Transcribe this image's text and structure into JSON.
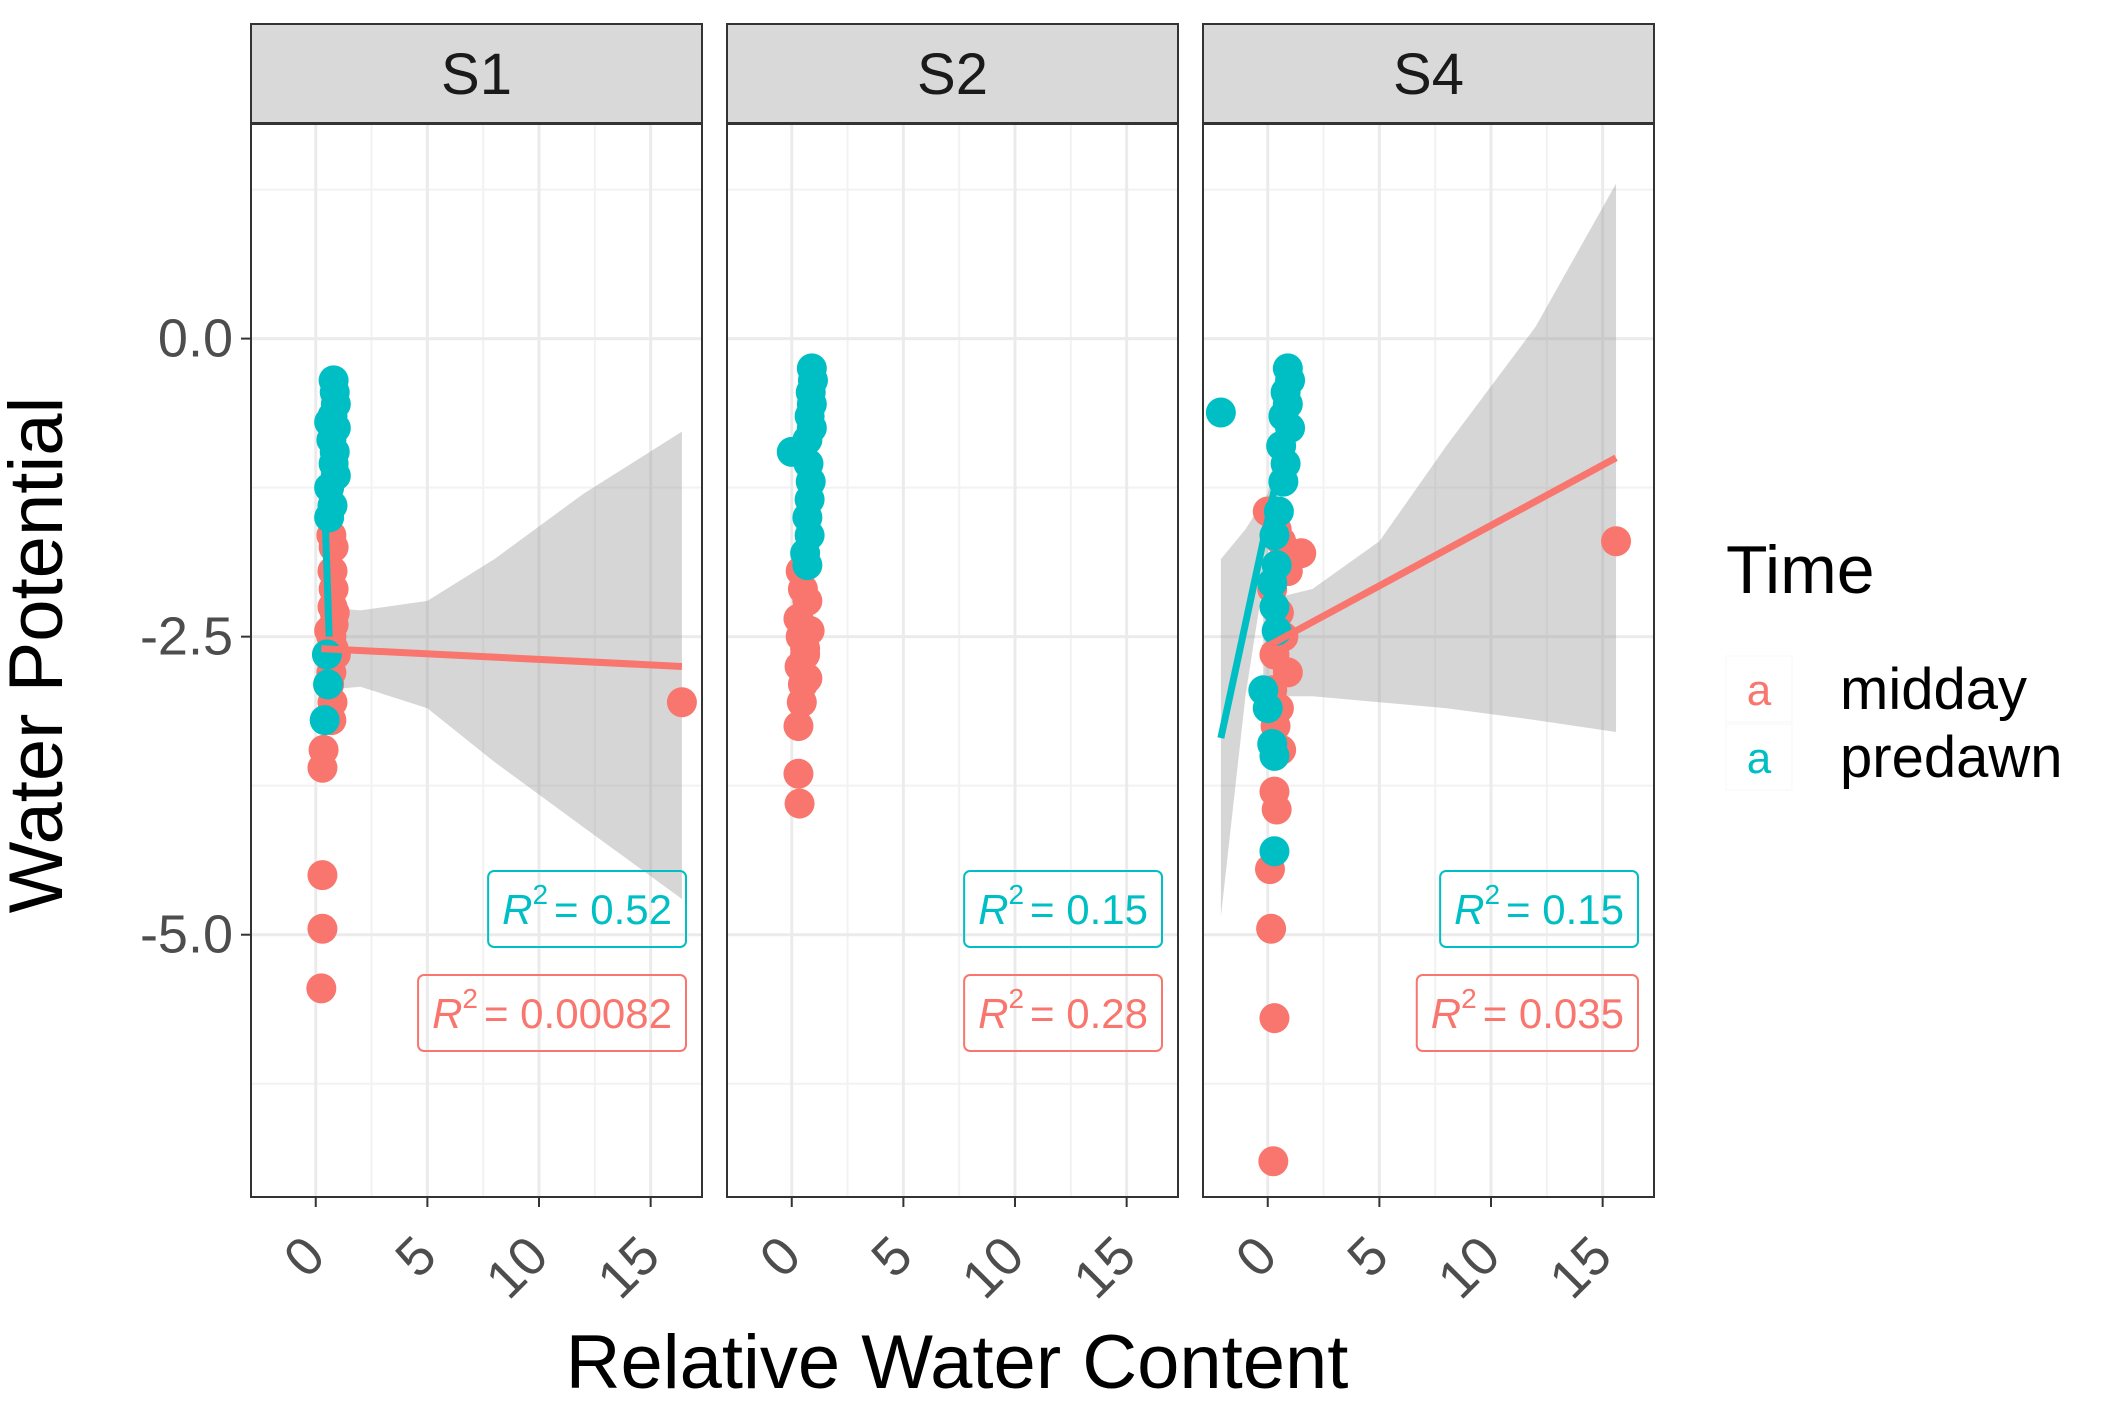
{
  "chart_data": {
    "type": "scatter",
    "xlabel": "Relative Water Content",
    "ylabel": "Water Potential",
    "legend": {
      "title": "Time",
      "position": "right",
      "entries": [
        {
          "name": "midday",
          "key": "a",
          "color": "#F8766D"
        },
        {
          "name": "predawn",
          "key": "a",
          "color": "#00BFC4"
        }
      ]
    },
    "xlim": [
      -2.9,
      17.3
    ],
    "ylim": [
      -7.2,
      1.8
    ],
    "x_ticks": [
      0,
      5,
      10,
      15
    ],
    "x_tick_labels": [
      "0",
      "5",
      "10",
      "15"
    ],
    "y_ticks": [
      0.0,
      -2.5,
      -5.0
    ],
    "y_tick_labels": [
      "0.0",
      "-2.5",
      "-5.0"
    ],
    "grid": true,
    "panels": [
      {
        "name": "S1",
        "series": [
          {
            "name": "midday",
            "color": "#F8766D",
            "points": [
              [
                0.3,
                -3.6
              ],
              [
                0.35,
                -3.45
              ],
              [
                0.3,
                -4.5
              ],
              [
                0.3,
                -4.95
              ],
              [
                0.25,
                -5.45
              ],
              [
                0.7,
                -1.65
              ],
              [
                0.8,
                -1.75
              ],
              [
                0.75,
                -1.95
              ],
              [
                0.8,
                -2.1
              ],
              [
                0.75,
                -2.25
              ],
              [
                0.8,
                -2.4
              ],
              [
                0.7,
                -2.5
              ],
              [
                0.8,
                -2.6
              ],
              [
                0.9,
                -2.65
              ],
              [
                0.7,
                -2.8
              ],
              [
                0.6,
                -2.9
              ],
              [
                0.75,
                -3.05
              ],
              [
                0.7,
                -3.2
              ],
              [
                0.6,
                -2.45
              ],
              [
                0.85,
                -2.3
              ],
              [
                16.4,
                -3.05
              ]
            ],
            "fit": [
              [
                0.25,
                -2.6
              ],
              [
                16.4,
                -2.75
              ]
            ],
            "band_upper": [
              [
                0.25,
                -2.25
              ],
              [
                2,
                -2.28
              ],
              [
                5,
                -2.2
              ],
              [
                8,
                -1.85
              ],
              [
                12,
                -1.3
              ],
              [
                16.4,
                -0.78
              ]
            ],
            "band_lower": [
              [
                0.25,
                -2.95
              ],
              [
                2,
                -2.92
              ],
              [
                5,
                -3.1
              ],
              [
                8,
                -3.55
              ],
              [
                12,
                -4.1
              ],
              [
                16.4,
                -4.7
              ]
            ],
            "r2_label": {
              "coef": "R",
              "exp": "2",
              "value": "= 0.00082"
            }
          },
          {
            "name": "predawn",
            "color": "#00BFC4",
            "points": [
              [
                0.8,
                -0.35
              ],
              [
                0.85,
                -0.45
              ],
              [
                0.9,
                -0.55
              ],
              [
                0.75,
                -0.65
              ],
              [
                0.9,
                -0.75
              ],
              [
                0.7,
                -0.85
              ],
              [
                0.85,
                -0.95
              ],
              [
                0.8,
                -1.05
              ],
              [
                0.9,
                -1.15
              ],
              [
                0.6,
                -1.25
              ],
              [
                0.75,
                -1.4
              ],
              [
                0.6,
                -1.5
              ],
              [
                0.5,
                -2.65
              ],
              [
                0.55,
                -2.9
              ],
              [
                0.4,
                -3.2
              ],
              [
                0.6,
                -0.7
              ]
            ],
            "fit": [
              [
                0.4,
                -1.4
              ],
              [
                0.6,
                -2.5
              ]
            ],
            "r2_label": {
              "coef": "R",
              "exp": "2",
              "value": "= 0.52"
            }
          }
        ]
      },
      {
        "name": "S2",
        "series": [
          {
            "name": "midday",
            "color": "#F8766D",
            "points": [
              [
                0.4,
                -1.95
              ],
              [
                0.5,
                -2.1
              ],
              [
                0.3,
                -2.35
              ],
              [
                0.4,
                -2.5
              ],
              [
                0.6,
                -2.6
              ],
              [
                0.35,
                -2.75
              ],
              [
                0.5,
                -2.9
              ],
              [
                0.45,
                -3.05
              ],
              [
                0.3,
                -3.25
              ],
              [
                0.3,
                -3.65
              ],
              [
                0.35,
                -3.9
              ],
              [
                0.7,
                -2.2
              ],
              [
                0.8,
                -2.45
              ],
              [
                0.6,
                -2.65
              ],
              [
                0.7,
                -2.85
              ]
            ],
            "fit": [
              [
                0.3,
                -3.0
              ],
              [
                0.8,
                -2.2
              ]
            ],
            "r2_label": {
              "coef": "R",
              "exp": "2",
              "value": "= 0.28"
            }
          },
          {
            "name": "predawn",
            "color": "#00BFC4",
            "points": [
              [
                0.9,
                -0.25
              ],
              [
                0.95,
                -0.35
              ],
              [
                0.85,
                -0.45
              ],
              [
                0.9,
                -0.55
              ],
              [
                0.8,
                -0.65
              ],
              [
                0.9,
                -0.75
              ],
              [
                0.7,
                -0.85
              ],
              [
                0.0,
                -0.95
              ],
              [
                0.75,
                -1.05
              ],
              [
                0.85,
                -1.2
              ],
              [
                0.8,
                -1.35
              ],
              [
                0.7,
                -1.5
              ],
              [
                0.8,
                -1.65
              ],
              [
                0.6,
                -1.8
              ],
              [
                0.7,
                -1.9
              ]
            ],
            "fit": [
              [
                0.3,
                -1.9
              ],
              [
                0.95,
                -0.8
              ]
            ],
            "r2_label": {
              "coef": "R",
              "exp": "2",
              "value": "= 0.15"
            }
          }
        ]
      },
      {
        "name": "S4",
        "series": [
          {
            "name": "midday",
            "color": "#F8766D",
            "points": [
              [
                0.0,
                -1.45
              ],
              [
                0.4,
                -1.6
              ],
              [
                0.6,
                -1.7
              ],
              [
                1.5,
                -1.8
              ],
              [
                0.9,
                -1.95
              ],
              [
                0.2,
                -2.1
              ],
              [
                0.5,
                -2.3
              ],
              [
                0.7,
                -2.5
              ],
              [
                0.3,
                -2.65
              ],
              [
                0.9,
                -2.8
              ],
              [
                0.2,
                -2.95
              ],
              [
                0.5,
                -3.1
              ],
              [
                0.35,
                -3.25
              ],
              [
                0.6,
                -3.45
              ],
              [
                0.3,
                -3.8
              ],
              [
                0.4,
                -3.95
              ],
              [
                0.1,
                -4.45
              ],
              [
                0.15,
                -4.95
              ],
              [
                0.3,
                -5.7
              ],
              [
                0.25,
                -6.9
              ],
              [
                15.6,
                -1.7
              ]
            ],
            "fit": [
              [
                -0.2,
                -2.6
              ],
              [
                15.6,
                -1.0
              ]
            ],
            "band_upper": [
              [
                -0.2,
                -2.2
              ],
              [
                2,
                -2.1
              ],
              [
                5,
                -1.7
              ],
              [
                8,
                -0.9
              ],
              [
                12,
                0.1
              ],
              [
                15.6,
                1.3
              ]
            ],
            "band_lower": [
              [
                -0.2,
                -3.0
              ],
              [
                2,
                -3.0
              ],
              [
                5,
                -3.05
              ],
              [
                8,
                -3.1
              ],
              [
                12,
                -3.2
              ],
              [
                15.6,
                -3.3
              ]
            ],
            "r2_label": {
              "coef": "R",
              "exp": "2",
              "value": "= 0.035"
            }
          },
          {
            "name": "predawn",
            "color": "#00BFC4",
            "points": [
              [
                -2.1,
                -0.62
              ],
              [
                0.9,
                -0.25
              ],
              [
                1.0,
                -0.35
              ],
              [
                0.8,
                -0.45
              ],
              [
                0.9,
                -0.55
              ],
              [
                0.7,
                -0.65
              ],
              [
                1.0,
                -0.75
              ],
              [
                0.6,
                -0.9
              ],
              [
                0.8,
                -1.05
              ],
              [
                0.7,
                -1.2
              ],
              [
                0.5,
                -1.45
              ],
              [
                0.3,
                -1.65
              ],
              [
                0.4,
                -1.9
              ],
              [
                0.2,
                -2.05
              ],
              [
                0.3,
                -2.25
              ],
              [
                0.4,
                -2.45
              ],
              [
                -0.2,
                -2.95
              ],
              [
                0.0,
                -3.1
              ],
              [
                0.2,
                -3.4
              ],
              [
                0.3,
                -3.5
              ],
              [
                0.3,
                -4.3
              ]
            ],
            "fit": [
              [
                -2.1,
                -3.35
              ],
              [
                0.6,
                -1.0
              ]
            ],
            "band_upper": [
              [
                -2.1,
                -1.85
              ],
              [
                -1.0,
                -1.6
              ],
              [
                0.0,
                -1.3
              ],
              [
                0.6,
                -0.8
              ]
            ],
            "band_lower": [
              [
                -2.1,
                -4.85
              ],
              [
                -1.0,
                -3.0
              ],
              [
                0.0,
                -1.8
              ],
              [
                0.6,
                -1.2
              ]
            ],
            "r2_label": {
              "coef": "R",
              "exp": "2",
              "value": "= 0.15"
            }
          }
        ]
      }
    ]
  }
}
